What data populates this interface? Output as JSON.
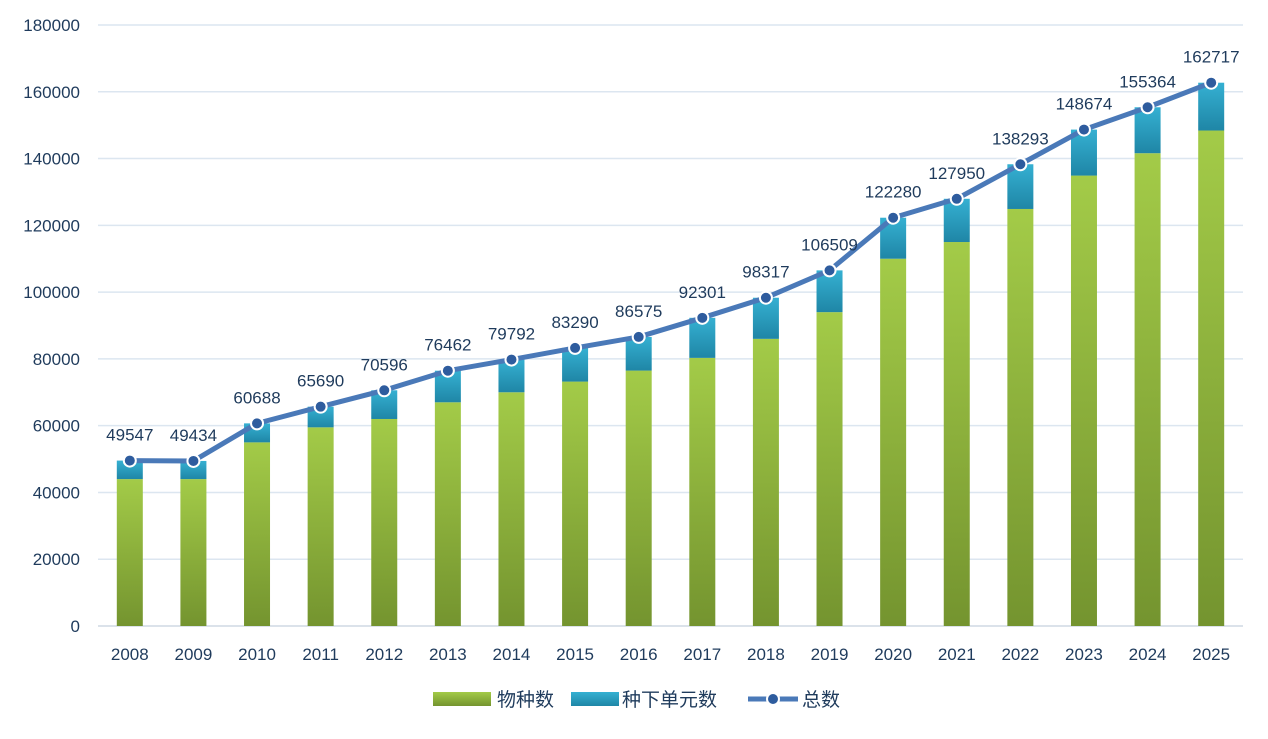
{
  "chart_data": {
    "type": "bar",
    "stacked": true,
    "categories": [
      "2008",
      "2009",
      "2010",
      "2011",
      "2012",
      "2013",
      "2014",
      "2015",
      "2016",
      "2017",
      "2018",
      "2019",
      "2020",
      "2021",
      "2022",
      "2023",
      "2024",
      "2025"
    ],
    "series": [
      {
        "name": "物种数",
        "type": "bar",
        "color": "#8fb83d",
        "values": [
          44000,
          44000,
          55000,
          59500,
          62000,
          67000,
          70000,
          73200,
          76500,
          80300,
          86000,
          94000,
          110000,
          115000,
          124900,
          134900,
          141600,
          148400
        ]
      },
      {
        "name": "种下单元数",
        "type": "bar",
        "color": "#2a9fc2",
        "values": [
          5547,
          5434,
          5688,
          6190,
          8596,
          9462,
          9792,
          10090,
          10075,
          12001,
          12317,
          12509,
          12280,
          12950,
          13393,
          13774,
          13764,
          14317
        ]
      },
      {
        "name": "总数",
        "type": "line",
        "color": "#4a79b8",
        "values": [
          49547,
          49434,
          60688,
          65690,
          70596,
          76462,
          79792,
          83290,
          86575,
          92301,
          98317,
          106509,
          122280,
          127950,
          138293,
          148674,
          155364,
          162717
        ]
      }
    ],
    "data_labels": [
      "49547",
      "49434",
      "60688",
      "65690",
      "70596",
      "76462",
      "79792",
      "83290",
      "86575",
      "92301",
      "98317",
      "106509",
      "122280",
      "127950",
      "138293",
      "148674",
      "155364",
      "162717"
    ],
    "y_ticks": [
      "0",
      "20000",
      "40000",
      "60000",
      "80000",
      "100000",
      "120000",
      "140000",
      "160000",
      "180000"
    ],
    "ylim": [
      0,
      180000
    ],
    "grid": true,
    "legend_position": "bottom"
  }
}
